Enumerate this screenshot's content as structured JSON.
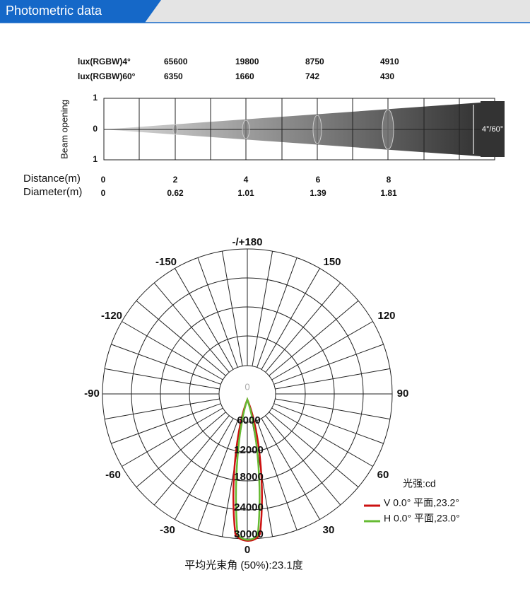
{
  "header": {
    "title": "Photometric data"
  },
  "lux_table": {
    "rows": [
      {
        "label": "lux(RGBW)4°",
        "values": [
          65600,
          19800,
          8750,
          4910
        ]
      },
      {
        "label": "lux(RGBW)60°",
        "values": [
          6350,
          1660,
          742,
          430
        ]
      }
    ]
  },
  "beam": {
    "axis_title": "Beam opening",
    "axis_labels": [
      1,
      0,
      1
    ],
    "angle_label": "4°/60°",
    "distance_label": "Distance(m)",
    "distances": [
      0,
      2,
      4,
      6,
      8
    ],
    "diameter_label": "Diameter(m)",
    "diameters": [
      0,
      0.62,
      1.01,
      1.39,
      1.81
    ]
  },
  "polar": {
    "angle_labels": [
      "-/+180",
      150,
      -150,
      120,
      -120,
      90,
      -90,
      60,
      -60,
      30,
      -30,
      0
    ],
    "center_label": 0,
    "radial_labels": [
      6000,
      12000,
      18000,
      24000,
      30000
    ],
    "unit": "光强:cd",
    "legend": [
      "V 0.0°  平面,23.2°",
      "H 0.0°  平面,23.0°"
    ],
    "footer": "平均光束角 (50%):23.1度"
  }
}
